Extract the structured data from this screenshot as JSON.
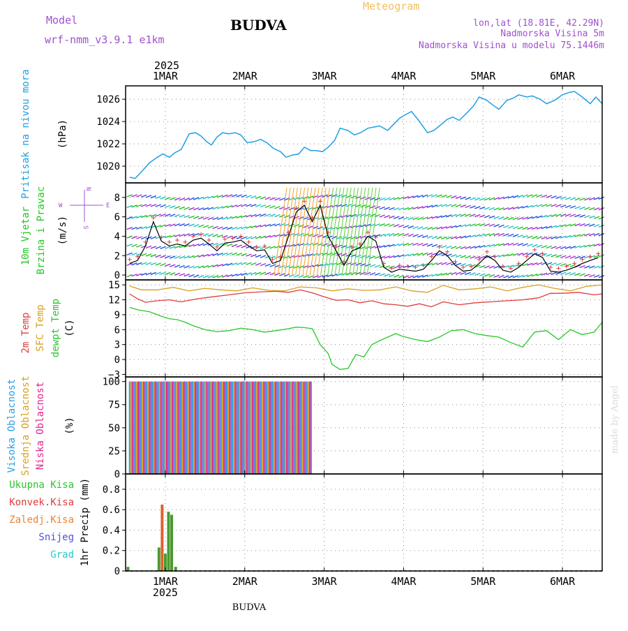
{
  "header": {
    "model_label": "Model",
    "model_name": "wrf-nmm_v3.9.1 e1km",
    "city": "BUDVA",
    "meteogram": "Meteogram",
    "lonlat": "lon,lat (18.81E, 42.29N)",
    "elevation": "Nadmorska Visina 5m",
    "model_elevation": "Nadmorska Visina u modelu 75.1446m",
    "footer_city": "BUDVA",
    "watermark": "made by Angel"
  },
  "colors": {
    "pressure": "#1ea0e6",
    "wind_title": "#1ec81e",
    "wind_speed_title": "#1ec81e",
    "temp2m": "#e03c3c",
    "sfc": "#d8a020",
    "dewpt": "#28c828",
    "high_cloud": "#28a0e6",
    "mid_cloud": "#d8a020",
    "low_cloud": "#e0288c",
    "purple": "#a050d0",
    "orange": "#f0a030"
  },
  "time_axis": {
    "year": "2025",
    "top_labels": [
      "1MAR",
      "2MAR",
      "3MAR",
      "4MAR",
      "5MAR",
      "6MAR"
    ],
    "bottom_labels": [
      "1MAR",
      "2MAR",
      "3MAR",
      "4MAR",
      "5MAR",
      "6MAR"
    ],
    "bottom_year": "2025"
  },
  "chart_data": [
    {
      "type": "line",
      "panel": "pressure",
      "ylabel_title": "Pritisak na nivou mora",
      "ylabel_unit": "(hPa)",
      "ylim": [
        1018.5,
        1027.2
      ],
      "y_ticks": [
        1020,
        1022,
        1024,
        1026
      ],
      "x_days": [
        0.5,
        6.5
      ],
      "series": [
        {
          "name": "Pritisak na nivou mora",
          "x": [
            0.55,
            0.62,
            0.7,
            0.8,
            0.9,
            0.97,
            1.05,
            1.12,
            1.2,
            1.3,
            1.38,
            1.45,
            1.52,
            1.58,
            1.65,
            1.72,
            1.8,
            1.88,
            1.95,
            2.03,
            2.12,
            2.2,
            2.28,
            2.36,
            2.45,
            2.52,
            2.6,
            2.68,
            2.75,
            2.83,
            2.9,
            2.98,
            3.05,
            3.13,
            3.2,
            3.3,
            3.38,
            3.46,
            3.55,
            3.62,
            3.7,
            3.8,
            3.88,
            3.95,
            4.02,
            4.1,
            4.2,
            4.3,
            4.38,
            4.45,
            4.55,
            4.62,
            4.7,
            4.8,
            4.88,
            4.95,
            5.05,
            5.12,
            5.2,
            5.3,
            5.38,
            5.45,
            5.55,
            5.62,
            5.72,
            5.8,
            5.9,
            6.0,
            6.08,
            6.15,
            6.25,
            6.35,
            6.42,
            6.5
          ],
          "y": [
            1019.0,
            1018.9,
            1019.5,
            1020.3,
            1020.8,
            1021.1,
            1020.8,
            1021.2,
            1021.5,
            1022.9,
            1023.0,
            1022.7,
            1022.2,
            1021.9,
            1022.6,
            1023.0,
            1022.9,
            1023.0,
            1022.8,
            1022.1,
            1022.2,
            1022.4,
            1022.1,
            1021.6,
            1021.3,
            1020.8,
            1021.0,
            1021.1,
            1021.7,
            1021.4,
            1021.4,
            1021.3,
            1021.7,
            1022.3,
            1023.4,
            1023.2,
            1022.8,
            1023.0,
            1023.4,
            1023.5,
            1023.6,
            1023.2,
            1023.8,
            1024.3,
            1024.6,
            1024.9,
            1024.0,
            1023.0,
            1023.2,
            1023.6,
            1024.2,
            1024.4,
            1024.1,
            1024.8,
            1025.4,
            1026.2,
            1025.9,
            1025.5,
            1025.1,
            1025.9,
            1026.1,
            1026.4,
            1026.2,
            1026.3,
            1026.0,
            1025.6,
            1025.9,
            1026.4,
            1026.6,
            1026.7,
            1026.2,
            1025.6,
            1026.2,
            1025.6
          ]
        }
      ]
    },
    {
      "type": "line",
      "panel": "wind",
      "ylabel_title": "10m Vjetar",
      "ylabel_title2": "Brzina i Pravac",
      "ylabel_unit": "(m/s)",
      "compass": {
        "n": "N",
        "s": "S",
        "e": "E",
        "w": "W"
      },
      "ylim": [
        -0.5,
        9.5
      ],
      "y_ticks": [
        0,
        2,
        4,
        6,
        8
      ],
      "x_days": [
        0.5,
        6.5
      ],
      "series": [
        {
          "name": "",
          "x": [
            0.55,
            0.65,
            0.75,
            0.85,
            0.95,
            1.05,
            1.15,
            1.25,
            1.35,
            1.45,
            1.55,
            1.65,
            1.75,
            1.85,
            1.95,
            2.05,
            2.15,
            2.25,
            2.35,
            2.45,
            2.55,
            2.65,
            2.75,
            2.85,
            2.95,
            3.05,
            3.15,
            3.25,
            3.35,
            3.45,
            3.55,
            3.65,
            3.75,
            3.85,
            3.95,
            4.05,
            4.15,
            4.25,
            4.35,
            4.45,
            4.55,
            4.65,
            4.75,
            4.85,
            4.95,
            5.05,
            5.15,
            5.25,
            5.35,
            5.45,
            5.55,
            5.65,
            5.75,
            5.85,
            5.95,
            6.05,
            6.15,
            6.25,
            6.35,
            6.45
          ],
          "y": [
            1.2,
            1.5,
            3.0,
            5.5,
            3.5,
            3.0,
            3.2,
            3.0,
            3.6,
            3.8,
            3.2,
            2.5,
            3.3,
            3.4,
            3.6,
            3.0,
            2.5,
            2.6,
            1.2,
            1.5,
            4.0,
            6.5,
            7.2,
            5.5,
            7.2,
            4.0,
            2.5,
            1.0,
            2.5,
            2.8,
            4.0,
            3.5,
            0.8,
            0.3,
            0.6,
            0.5,
            0.4,
            0.6,
            1.5,
            2.5,
            2.0,
            1.0,
            0.4,
            0.5,
            1.2,
            2.0,
            1.5,
            0.5,
            0.3,
            0.8,
            1.5,
            2.2,
            1.8,
            0.4,
            0.3,
            0.5,
            0.8,
            1.2,
            1.5,
            1.8
          ]
        }
      ]
    },
    {
      "type": "line",
      "panel": "temperature",
      "ylabel_title1": "2m Temp",
      "ylabel_title2": "SFC Temp",
      "ylabel_title3": "dewpt Temp",
      "ylabel_unit": "(C)",
      "ylim": [
        -3.5,
        16
      ],
      "y_ticks": [
        -3,
        0,
        3,
        6,
        9,
        12,
        15
      ],
      "x_days": [
        0.5,
        6.5
      ],
      "series": [
        {
          "name": "2m Temp",
          "x": [
            0.55,
            0.65,
            0.75,
            0.9,
            1.05,
            1.2,
            1.4,
            1.6,
            1.8,
            2.0,
            2.2,
            2.4,
            2.55,
            2.7,
            2.85,
            3.0,
            3.15,
            3.3,
            3.45,
            3.6,
            3.75,
            3.9,
            4.05,
            4.2,
            4.35,
            4.5,
            4.7,
            4.9,
            5.1,
            5.3,
            5.5,
            5.7,
            5.85,
            6.0,
            6.2,
            6.4,
            6.5
          ],
          "y": [
            13.2,
            12.2,
            11.5,
            11.8,
            12.0,
            11.6,
            12.2,
            12.6,
            13.0,
            13.4,
            13.6,
            13.7,
            13.5,
            14.0,
            13.4,
            12.6,
            11.9,
            12.0,
            11.4,
            11.8,
            11.2,
            11.0,
            10.7,
            11.2,
            10.6,
            11.6,
            11.0,
            11.4,
            11.6,
            11.8,
            12.0,
            12.4,
            13.3,
            13.3,
            13.5,
            13.0,
            13.2
          ]
        },
        {
          "name": "SFC Temp",
          "x": [
            0.55,
            0.7,
            0.9,
            1.1,
            1.3,
            1.5,
            1.7,
            1.9,
            2.1,
            2.3,
            2.5,
            2.7,
            2.9,
            3.1,
            3.3,
            3.5,
            3.7,
            3.9,
            4.1,
            4.3,
            4.5,
            4.7,
            4.9,
            5.1,
            5.3,
            5.5,
            5.7,
            5.9,
            6.1,
            6.3,
            6.5
          ],
          "y": [
            14.8,
            14.0,
            14.0,
            14.5,
            13.8,
            14.3,
            14.0,
            13.8,
            14.4,
            13.9,
            13.8,
            14.6,
            14.4,
            13.8,
            14.2,
            13.9,
            14.0,
            14.6,
            13.8,
            13.5,
            14.9,
            14.0,
            14.2,
            14.6,
            13.8,
            14.5,
            15.0,
            14.3,
            13.8,
            14.7,
            15.0
          ]
        },
        {
          "name": "dewpt Temp",
          "x": [
            0.55,
            0.65,
            0.8,
            0.95,
            1.05,
            1.15,
            1.25,
            1.35,
            1.5,
            1.65,
            1.8,
            1.95,
            2.1,
            2.25,
            2.4,
            2.55,
            2.65,
            2.75,
            2.85,
            2.95,
            3.05,
            3.1,
            3.2,
            3.3,
            3.4,
            3.5,
            3.6,
            3.7,
            3.8,
            3.9,
            4.0,
            4.15,
            4.3,
            4.45,
            4.6,
            4.75,
            4.9,
            5.05,
            5.2,
            5.35,
            5.5,
            5.65,
            5.8,
            5.95,
            6.1,
            6.25,
            6.4,
            6.5
          ],
          "y": [
            10.5,
            10.0,
            9.6,
            8.7,
            8.2,
            8.0,
            7.5,
            6.8,
            6.0,
            5.6,
            5.8,
            6.3,
            6.0,
            5.5,
            5.8,
            6.2,
            6.5,
            6.4,
            6.2,
            3.0,
            1.2,
            -1.0,
            -2.0,
            -1.8,
            1.0,
            0.5,
            3.0,
            3.8,
            4.5,
            5.2,
            4.6,
            4.0,
            3.6,
            4.5,
            5.8,
            6.0,
            5.2,
            4.8,
            4.5,
            3.4,
            2.5,
            5.5,
            5.8,
            4.0,
            6.0,
            5.0,
            5.5,
            7.5
          ]
        }
      ]
    },
    {
      "type": "bar",
      "panel": "clouds",
      "ylabel_title1": "Visoka Oblacnost",
      "ylabel_title2": "Srednja Oblacnost",
      "ylabel_title3": "Niska Oblacnost",
      "ylabel_unit": "(%)",
      "ylim": [
        0,
        105
      ],
      "y_ticks": [
        0,
        25,
        50,
        75,
        100
      ],
      "x_days": [
        0.5,
        6.5
      ],
      "series": [
        {
          "name": "Visoka Oblacnost",
          "x_range": [
            0.55,
            2.85
          ],
          "value": 100
        }
      ]
    },
    {
      "type": "bar",
      "panel": "precip",
      "legend": [
        "Ukupna Kisa",
        "Konvek.Kisa",
        "Zaledj.Kisa",
        "Snijeg",
        "Grad"
      ],
      "ylabel_unit": "1hr Precip (mm)",
      "ylim": [
        0,
        0.95
      ],
      "y_ticks": [
        0,
        0.2,
        0.4,
        0.6,
        0.8
      ],
      "y_tick_labels": [
        "0",
        "0.2",
        "0.4",
        "0.6",
        "0.8"
      ],
      "x_days": [
        0.5,
        6.5
      ],
      "series": [
        {
          "name": "Ukupna Kisa",
          "x": [
            0.53,
            0.92,
            0.96,
            1.0,
            1.04,
            1.08,
            1.13
          ],
          "values": [
            0.04,
            0.23,
            0.65,
            0.17,
            0.58,
            0.55,
            0.04
          ]
        }
      ]
    }
  ]
}
